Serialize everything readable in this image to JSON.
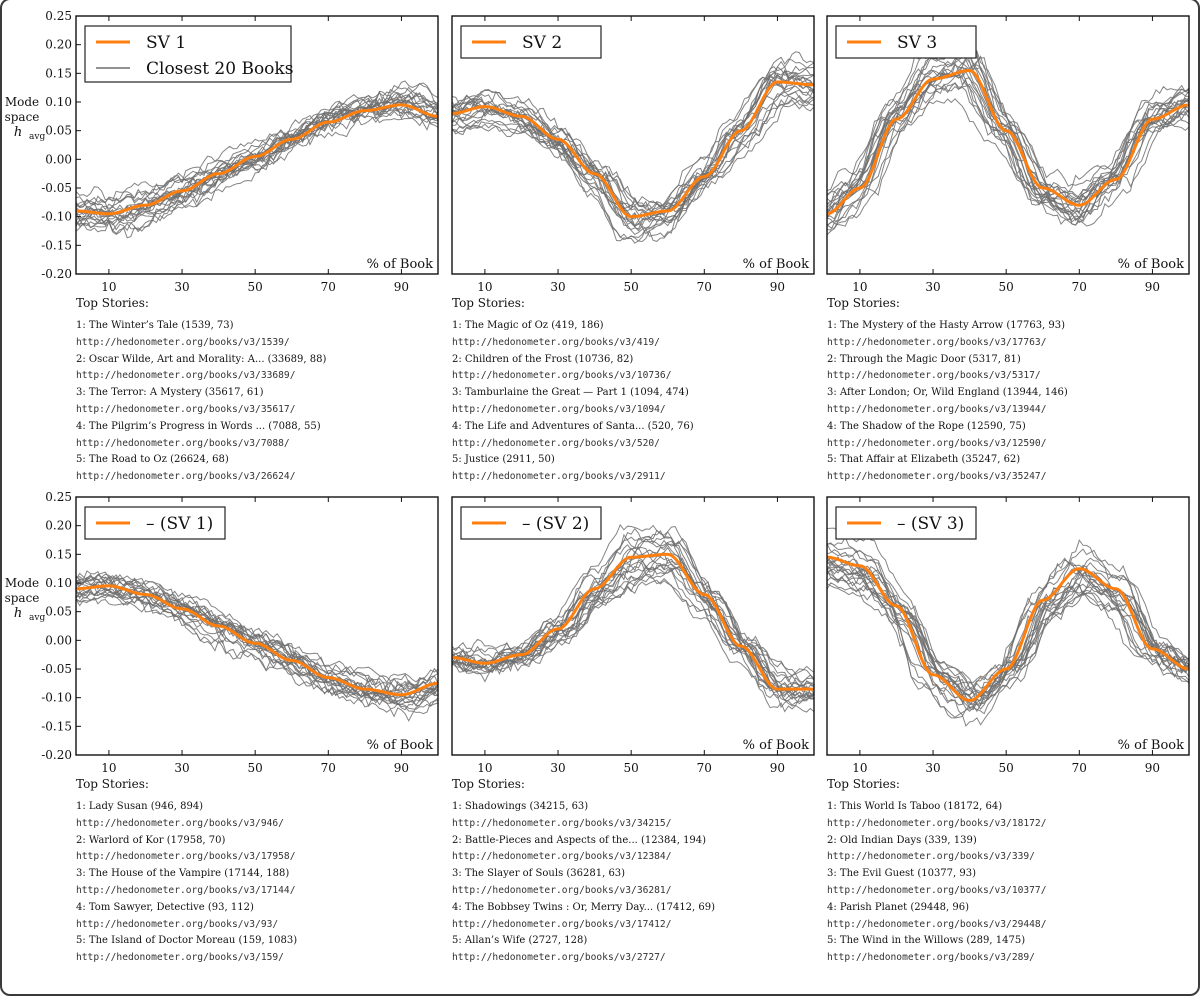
{
  "figure": {
    "ylabel_lines": [
      "Mode",
      "space",
      "h",
      "avg"
    ],
    "xlabel": "% of Book",
    "top_stories_label": "Top Stories:"
  },
  "colors": {
    "mode": "#ff7f0e",
    "books": "#6f6f6f",
    "axis": "#111111"
  },
  "chart_data": [
    {
      "type": "line",
      "title": "SV 1",
      "legend": [
        "SV 1",
        "Closest 20 Books"
      ],
      "xlabel": "% of Book",
      "ylabel": "Mode space h_avg",
      "xlim": [
        1,
        100
      ],
      "ylim": [
        -0.2,
        0.25
      ],
      "xticks": [
        10,
        30,
        50,
        70,
        90
      ],
      "yticks": [
        -0.2,
        -0.15,
        -0.1,
        -0.05,
        0.0,
        0.05,
        0.1,
        0.15,
        0.2,
        0.25
      ],
      "series": [
        {
          "name": "SV 1",
          "x": [
            1,
            10,
            20,
            30,
            40,
            50,
            60,
            70,
            80,
            90,
            100
          ],
          "values": [
            -0.09,
            -0.095,
            -0.08,
            -0.055,
            -0.025,
            0.005,
            0.035,
            0.065,
            0.085,
            0.095,
            0.075
          ]
        },
        {
          "name": "Closest 20 Books",
          "count": 20
        }
      ]
    },
    {
      "type": "line",
      "title": "SV 2",
      "legend": [
        "SV 2"
      ],
      "xlabel": "% of Book",
      "xlim": [
        1,
        100
      ],
      "ylim": [
        -0.2,
        0.25
      ],
      "xticks": [
        10,
        30,
        50,
        70,
        90
      ],
      "series": [
        {
          "name": "SV 2",
          "x": [
            1,
            10,
            20,
            30,
            40,
            50,
            60,
            70,
            80,
            90,
            100
          ],
          "values": [
            0.08,
            0.092,
            0.075,
            0.035,
            -0.025,
            -0.1,
            -0.09,
            -0.03,
            0.05,
            0.135,
            0.13
          ]
        },
        {
          "name": "Closest 20 Books",
          "count": 20
        }
      ]
    },
    {
      "type": "line",
      "title": "SV 3",
      "legend": [
        "SV 3"
      ],
      "xlabel": "% of Book",
      "xlim": [
        1,
        100
      ],
      "ylim": [
        -0.2,
        0.25
      ],
      "xticks": [
        10,
        30,
        50,
        70,
        90
      ],
      "series": [
        {
          "name": "SV 3",
          "x": [
            1,
            10,
            20,
            30,
            40,
            50,
            60,
            70,
            80,
            90,
            100
          ],
          "values": [
            -0.095,
            -0.05,
            0.07,
            0.14,
            0.155,
            0.05,
            -0.05,
            -0.08,
            -0.035,
            0.07,
            0.095
          ]
        },
        {
          "name": "Closest 20 Books",
          "count": 20
        }
      ]
    },
    {
      "type": "line",
      "title": "– (SV 1)",
      "legend": [
        "– (SV 1)"
      ],
      "xlabel": "% of Book",
      "ylabel": "Mode space h_avg",
      "xlim": [
        1,
        100
      ],
      "ylim": [
        -0.2,
        0.25
      ],
      "xticks": [
        10,
        30,
        50,
        70,
        90
      ],
      "yticks": [
        -0.2,
        -0.15,
        -0.1,
        -0.05,
        0.0,
        0.05,
        0.1,
        0.15,
        0.2,
        0.25
      ],
      "series": [
        {
          "name": "– (SV 1)",
          "x": [
            1,
            10,
            20,
            30,
            40,
            50,
            60,
            70,
            80,
            90,
            100
          ],
          "values": [
            0.09,
            0.095,
            0.08,
            0.055,
            0.025,
            -0.005,
            -0.035,
            -0.065,
            -0.085,
            -0.095,
            -0.075
          ]
        },
        {
          "name": "Closest 20 Books",
          "count": 20
        }
      ]
    },
    {
      "type": "line",
      "title": "– (SV 2)",
      "legend": [
        "– (SV 2)"
      ],
      "xlabel": "% of Book",
      "xlim": [
        1,
        100
      ],
      "ylim": [
        -0.2,
        0.25
      ],
      "xticks": [
        10,
        30,
        50,
        70,
        90
      ],
      "series": [
        {
          "name": "– (SV 2)",
          "x": [
            1,
            10,
            20,
            30,
            40,
            50,
            60,
            70,
            80,
            90,
            100
          ],
          "values": [
            -0.03,
            -0.04,
            -0.025,
            0.02,
            0.09,
            0.145,
            0.15,
            0.08,
            -0.01,
            -0.085,
            -0.085
          ]
        },
        {
          "name": "Closest 20 Books",
          "count": 20
        }
      ]
    },
    {
      "type": "line",
      "title": "– (SV 3)",
      "legend": [
        "– (SV 3)"
      ],
      "xlabel": "% of Book",
      "xlim": [
        1,
        100
      ],
      "ylim": [
        -0.2,
        0.25
      ],
      "xticks": [
        10,
        30,
        50,
        70,
        90
      ],
      "series": [
        {
          "name": "– (SV 3)",
          "x": [
            1,
            10,
            20,
            30,
            40,
            50,
            60,
            70,
            80,
            90,
            100
          ],
          "values": [
            0.145,
            0.13,
            0.06,
            -0.06,
            -0.105,
            -0.05,
            0.07,
            0.125,
            0.09,
            -0.015,
            -0.05
          ]
        },
        {
          "name": "Closest 20 Books",
          "count": 20
        }
      ]
    }
  ],
  "top_stories": [
    [
      {
        "t": "1: The Winter’s Tale (1539, 73)",
        "u": "http://hedonometer.org/books/v3/1539/"
      },
      {
        "t": "2: Oscar Wilde, Art and Morality: A... (33689, 88)",
        "u": "http://hedonometer.org/books/v3/33689/"
      },
      {
        "t": "3: The Terror: A Mystery (35617, 61)",
        "u": "http://hedonometer.org/books/v3/35617/"
      },
      {
        "t": "4: The Pilgrim’s Progress in Words ... (7088, 55)",
        "u": "http://hedonometer.org/books/v3/7088/"
      },
      {
        "t": "5: The Road to Oz (26624, 68)",
        "u": "http://hedonometer.org/books/v3/26624/"
      }
    ],
    [
      {
        "t": "1: The Magic of Oz (419, 186)",
        "u": "http://hedonometer.org/books/v3/419/"
      },
      {
        "t": "2: Children of the Frost (10736, 82)",
        "u": "http://hedonometer.org/books/v3/10736/"
      },
      {
        "t": "3: Tamburlaine the Great — Part 1 (1094, 474)",
        "u": "http://hedonometer.org/books/v3/1094/"
      },
      {
        "t": "4: The Life and Adventures of Santa... (520, 76)",
        "u": "http://hedonometer.org/books/v3/520/"
      },
      {
        "t": "5: Justice (2911, 50)",
        "u": "http://hedonometer.org/books/v3/2911/"
      }
    ],
    [
      {
        "t": "1: The Mystery of the Hasty Arrow (17763, 93)",
        "u": "http://hedonometer.org/books/v3/17763/"
      },
      {
        "t": "2: Through the Magic Door (5317, 81)",
        "u": "http://hedonometer.org/books/v3/5317/"
      },
      {
        "t": "3: After London; Or, Wild England (13944, 146)",
        "u": "http://hedonometer.org/books/v3/13944/"
      },
      {
        "t": "4: The Shadow of the Rope (12590, 75)",
        "u": "http://hedonometer.org/books/v3/12590/"
      },
      {
        "t": "5: That Affair at Elizabeth (35247, 62)",
        "u": "http://hedonometer.org/books/v3/35247/"
      }
    ],
    [
      {
        "t": "1: Lady Susan (946, 894)",
        "u": "http://hedonometer.org/books/v3/946/"
      },
      {
        "t": "2: Warlord of Kor (17958, 70)",
        "u": "http://hedonometer.org/books/v3/17958/"
      },
      {
        "t": "3: The House of the Vampire (17144, 188)",
        "u": "http://hedonometer.org/books/v3/17144/"
      },
      {
        "t": "4: Tom Sawyer, Detective (93, 112)",
        "u": "http://hedonometer.org/books/v3/93/"
      },
      {
        "t": "5: The Island of Doctor Moreau (159, 1083)",
        "u": "http://hedonometer.org/books/v3/159/"
      }
    ],
    [
      {
        "t": "1: Shadowings (34215, 63)",
        "u": "http://hedonometer.org/books/v3/34215/"
      },
      {
        "t": "2: Battle-Pieces and Aspects of the... (12384, 194)",
        "u": "http://hedonometer.org/books/v3/12384/"
      },
      {
        "t": "3: The Slayer of Souls (36281, 63)",
        "u": "http://hedonometer.org/books/v3/36281/"
      },
      {
        "t": "4: The Bobbsey Twins : Or, Merry Day... (17412, 69)",
        "u": "http://hedonometer.org/books/v3/17412/"
      },
      {
        "t": "5: Allan’s Wife (2727, 128)",
        "u": "http://hedonometer.org/books/v3/2727/"
      }
    ],
    [
      {
        "t": "1: This World Is Taboo (18172, 64)",
        "u": "http://hedonometer.org/books/v3/18172/"
      },
      {
        "t": "2: Old Indian Days (339, 139)",
        "u": "http://hedonometer.org/books/v3/339/"
      },
      {
        "t": "3: The Evil Guest (10377, 93)",
        "u": "http://hedonometer.org/books/v3/10377/"
      },
      {
        "t": "4: Parish Planet (29448, 96)",
        "u": "http://hedonometer.org/books/v3/29448/"
      },
      {
        "t": "5: The Wind in the Willows (289, 1475)",
        "u": "http://hedonometer.org/books/v3/289/"
      }
    ]
  ]
}
